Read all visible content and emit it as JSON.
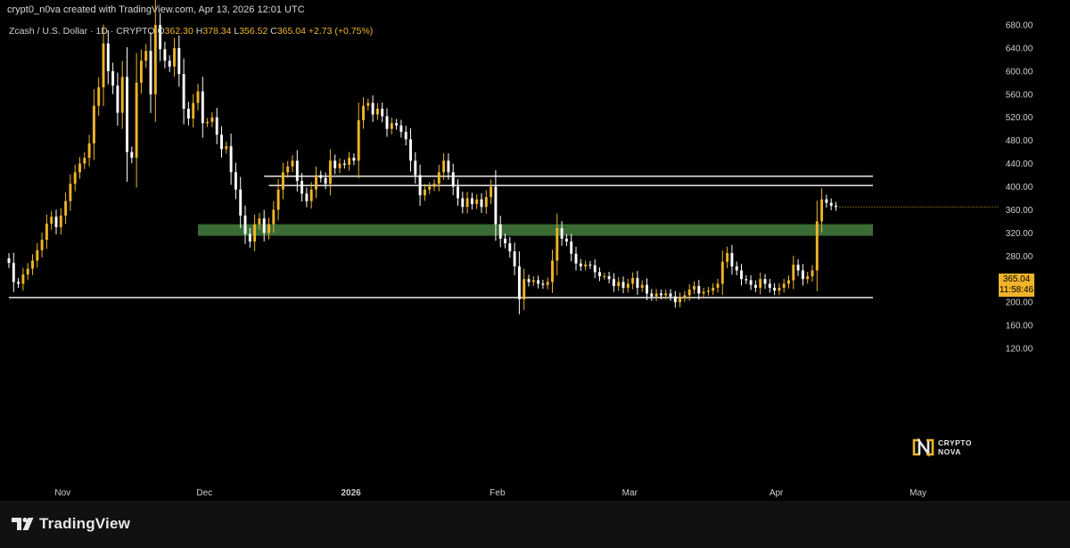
{
  "header": {
    "attribution": "crypt0_n0va created with TradingView.com, Apr 13, 2026 12:01 UTC"
  },
  "symbol": {
    "name": "Zcash / U.S. Dollar · 1D · CRYPTO",
    "open_label": "O",
    "open": "362.30",
    "high_label": "H",
    "high": "378.34",
    "low_label": "L",
    "low": "356.52",
    "close_label": "C",
    "close": "365.04",
    "change": "+2.73 (+0.75%)"
  },
  "price_tag": {
    "price": "365.04",
    "countdown": "11:58:46"
  },
  "watermark": {
    "line1": "CRYPTO",
    "line2": "NOVA"
  },
  "footer": {
    "brand": "TradingView"
  },
  "colors": {
    "up": "#f0b429",
    "down": "#ffffff",
    "zone": "#3a6b35",
    "background": "#000000"
  },
  "chart_data": {
    "type": "candlestick",
    "x_ticks": [
      "Nov",
      "Dec",
      "2026",
      "Feb",
      "Mar",
      "Apr",
      "May"
    ],
    "y_ticks": [
      "680.00",
      "640.00",
      "600.00",
      "560.00",
      "520.00",
      "480.00",
      "440.00",
      "400.00",
      "360.00",
      "320.00",
      "280.00",
      "240.00",
      "200.00",
      "160.00",
      "120.00"
    ],
    "ylim": [
      110,
      690
    ],
    "start_date": "2025-10-21",
    "last_date": "2026-04-13",
    "xlim_dates": [
      "2025-10-21",
      "2026-05-20"
    ],
    "closes": [
      268,
      235,
      232,
      248,
      258,
      272,
      290,
      308,
      336,
      348,
      330,
      350,
      375,
      405,
      425,
      440,
      450,
      475,
      540,
      572,
      648,
      600,
      575,
      528,
      590,
      460,
      450,
      580,
      618,
      635,
      560,
      680,
      638,
      618,
      608,
      640,
      595,
      535,
      518,
      545,
      565,
      510,
      512,
      520,
      490,
      465,
      470,
      425,
      395,
      350,
      318,
      305,
      335,
      345,
      320,
      335,
      360,
      395,
      425,
      435,
      445,
      410,
      388,
      375,
      395,
      420,
      415,
      405,
      445,
      432,
      440,
      438,
      450,
      445,
      515,
      540,
      545,
      525,
      535,
      522,
      500,
      510,
      506,
      495,
      482,
      445,
      420,
      385,
      395,
      400,
      405,
      425,
      445,
      425,
      400,
      380,
      365,
      380,
      370,
      378,
      365,
      382,
      400,
      335,
      310,
      302,
      288,
      262,
      205,
      240,
      235,
      238,
      232,
      230,
      235,
      272,
      328,
      310,
      305,
      284,
      267,
      262,
      265,
      264,
      252,
      245,
      245,
      240,
      228,
      235,
      225,
      232,
      242,
      225,
      230,
      215,
      210,
      215,
      212,
      215,
      210,
      200,
      208,
      212,
      222,
      228,
      215,
      218,
      220,
      225,
      232,
      270,
      285,
      262,
      255,
      240,
      238,
      230,
      225,
      240,
      232,
      225,
      220,
      225,
      232,
      238,
      265,
      255,
      240,
      245,
      255,
      340,
      378,
      372,
      367,
      365
    ],
    "series": [
      {
        "name": "Zcash / U.S. Dollar",
        "points": "daily OHLC, derived from closes"
      }
    ],
    "annotations": [
      {
        "kind": "horizontal-line",
        "price": 418,
        "from": "2025-12-14",
        "to": "2026-05-20"
      },
      {
        "kind": "horizontal-line",
        "price": 402,
        "from": "2025-12-15",
        "to": "2026-05-20"
      },
      {
        "kind": "horizontal-line",
        "price": 208,
        "from": "2025-10-21",
        "to": "2026-05-20"
      },
      {
        "kind": "zone",
        "low": 315,
        "high": 335,
        "from": "2025-11-30",
        "to": "2026-05-20"
      }
    ]
  }
}
